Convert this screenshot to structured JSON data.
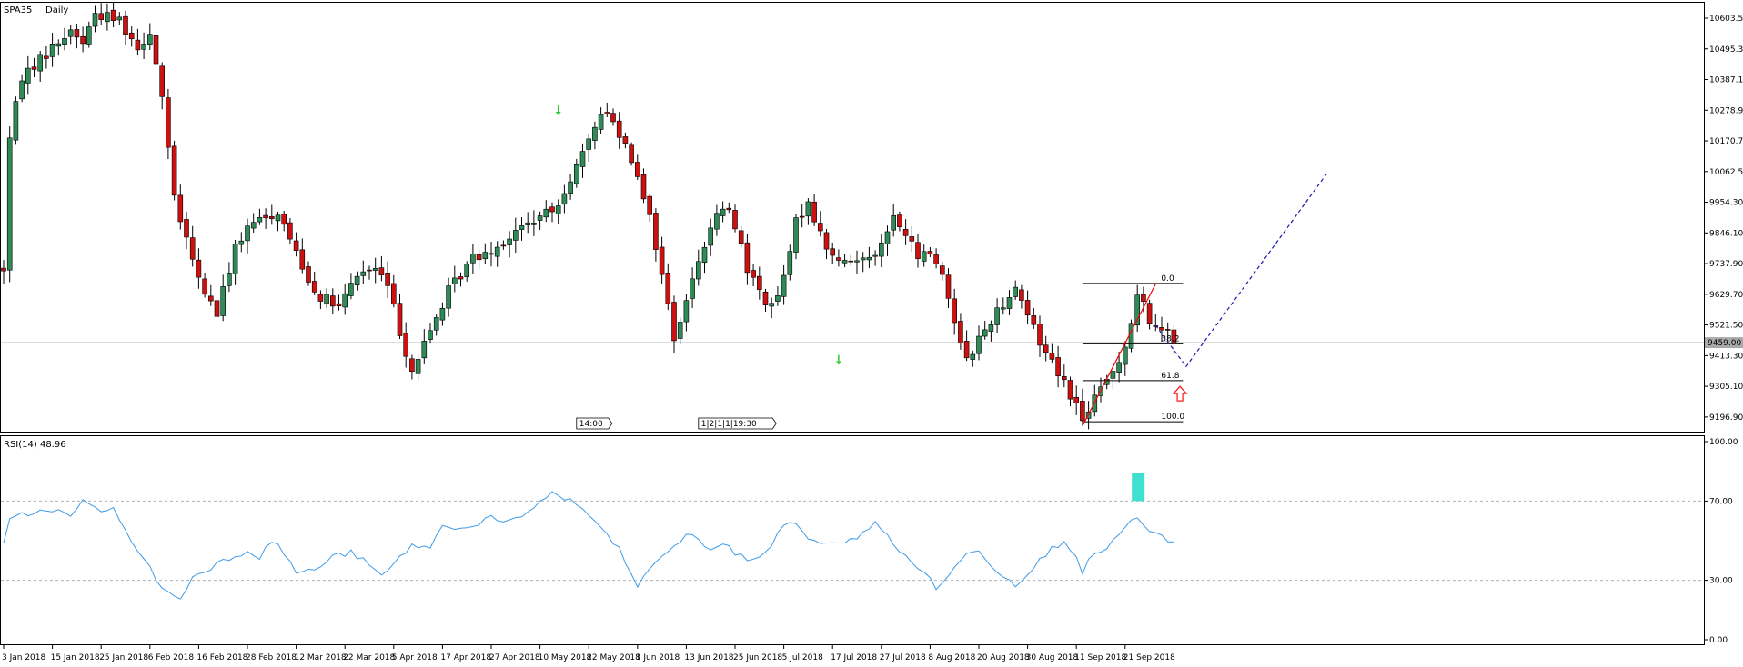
{
  "chart_data": {
    "type": "candlestick",
    "symbol": "SPA35",
    "timeframe": "Daily",
    "colors": {
      "up": "#2e8b57",
      "down": "#cc1111",
      "rsi_line": "#3d9be9",
      "pattern_arrow": "#33cc33",
      "trendline": "#ff0000",
      "projection": "#1a1aaa",
      "rsi_box": "#40e0d0",
      "signal_arrow": "#ff2222"
    },
    "price_axis": {
      "ylim": [
        9142,
        10658
      ],
      "ticks": [
        "10603.50",
        "10495.30",
        "10387.10",
        "10278.90",
        "10170.70",
        "10062.50",
        "9954.30",
        "9846.10",
        "9737.90",
        "9629.70",
        "9521.50",
        "9413.30",
        "9305.10",
        "9196.90"
      ],
      "current_price": 9459,
      "current_price_label": "9459.00"
    },
    "dates": [
      "3 Jan 2018",
      "15 Jan 2018",
      "25 Jan 2018",
      "6 Feb 2018",
      "16 Feb 2018",
      "28 Feb 2018",
      "12 Mar 2018",
      "22 Mar 2018",
      "5 Apr 2018",
      "17 Apr 2018",
      "27 Apr 2018",
      "10 May 2018",
      "22 May 2018",
      "1 Jun 2018",
      "13 Jun 2018",
      "25 Jun 2018",
      "5 Jul 2018",
      "17 Jul 2018",
      "27 Jul 2018",
      "8 Aug 2018",
      "20 Aug 2018",
      "30 Aug 2018",
      "11 Sep 2018",
      "21 Sep 2018"
    ],
    "waypoints": [
      [
        0,
        9720
      ],
      [
        1,
        10180
      ],
      [
        3,
        10400
      ],
      [
        7,
        10480
      ],
      [
        11,
        10560
      ],
      [
        13,
        10520
      ],
      [
        15,
        10620
      ],
      [
        19,
        10600
      ],
      [
        22,
        10500
      ],
      [
        24,
        10560
      ],
      [
        26,
        10330
      ],
      [
        28,
        9960
      ],
      [
        30,
        9820
      ],
      [
        32,
        9680
      ],
      [
        35,
        9560
      ],
      [
        38,
        9800
      ],
      [
        41,
        9880
      ],
      [
        45,
        9920
      ],
      [
        48,
        9780
      ],
      [
        51,
        9640
      ],
      [
        55,
        9580
      ],
      [
        58,
        9700
      ],
      [
        61,
        9720
      ],
      [
        63,
        9660
      ],
      [
        65,
        9500
      ],
      [
        67,
        9360
      ],
      [
        70,
        9500
      ],
      [
        73,
        9640
      ],
      [
        77,
        9760
      ],
      [
        81,
        9800
      ],
      [
        86,
        9880
      ],
      [
        90,
        9920
      ],
      [
        93,
        10040
      ],
      [
        96,
        10160
      ],
      [
        98,
        10280
      ],
      [
        100,
        10240
      ],
      [
        102,
        10160
      ],
      [
        104,
        10060
      ],
      [
        106,
        9900
      ],
      [
        108,
        9700
      ],
      [
        110,
        9480
      ],
      [
        112,
        9600
      ],
      [
        114,
        9760
      ],
      [
        116,
        9860
      ],
      [
        118,
        9940
      ],
      [
        120,
        9880
      ],
      [
        122,
        9720
      ],
      [
        124,
        9640
      ],
      [
        126,
        9580
      ],
      [
        128,
        9680
      ],
      [
        130,
        9880
      ],
      [
        132,
        9960
      ],
      [
        134,
        9840
      ],
      [
        136,
        9760
      ],
      [
        138,
        9740
      ],
      [
        141,
        9760
      ],
      [
        144,
        9800
      ],
      [
        146,
        9900
      ],
      [
        148,
        9840
      ],
      [
        150,
        9760
      ],
      [
        152,
        9780
      ],
      [
        154,
        9700
      ],
      [
        156,
        9540
      ],
      [
        158,
        9400
      ],
      [
        160,
        9470
      ],
      [
        162,
        9540
      ],
      [
        164,
        9600
      ],
      [
        166,
        9660
      ],
      [
        168,
        9560
      ],
      [
        170,
        9460
      ],
      [
        172,
        9400
      ],
      [
        174,
        9320
      ],
      [
        176,
        9240
      ],
      [
        177,
        9180
      ],
      [
        178,
        9230
      ],
      [
        180,
        9290
      ],
      [
        182,
        9360
      ],
      [
        184,
        9450
      ],
      [
        186,
        9620
      ],
      [
        187,
        9590
      ],
      [
        189,
        9500
      ],
      [
        191,
        9520
      ],
      [
        192,
        9470
      ]
    ],
    "fibonacci": {
      "levels": [
        {
          "label": "0.0",
          "price": 9668
        },
        {
          "label": "38.2",
          "price": 9455
        },
        {
          "label": "61.8",
          "price": 9325
        },
        {
          "label": "100.0",
          "price": 9180
        }
      ],
      "bar_start": 177,
      "bar_end": 192
    },
    "trendline": {
      "from": [
        177,
        9165
      ],
      "to": [
        189,
        9666
      ]
    },
    "projection": [
      [
        189,
        9520
      ],
      [
        194,
        9375
      ],
      [
        217,
        10053
      ]
    ],
    "signal_arrow": {
      "bar": 193,
      "price": 9305
    },
    "pattern_arrows": [
      [
        91,
        10280
      ],
      [
        137,
        9400
      ]
    ],
    "time_markers": [
      {
        "bar": 94,
        "text": "14:00"
      },
      {
        "bar": 114,
        "text": "1|2|1|1|19:30"
      }
    ],
    "rsi": {
      "label": "RSI(14) 48.96",
      "ylim": [
        0,
        100
      ],
      "ticks": [
        "100.00",
        "70.00",
        "30.00",
        "0.00"
      ],
      "levels": [
        70,
        30
      ],
      "waypoints": [
        [
          0,
          48
        ],
        [
          1,
          60
        ],
        [
          3,
          63
        ],
        [
          8,
          66
        ],
        [
          11,
          62
        ],
        [
          13,
          70
        ],
        [
          16,
          64
        ],
        [
          18,
          68
        ],
        [
          21,
          48
        ],
        [
          23,
          42
        ],
        [
          25,
          30
        ],
        [
          27,
          24
        ],
        [
          29,
          20
        ],
        [
          31,
          32
        ],
        [
          33,
          35
        ],
        [
          36,
          40
        ],
        [
          40,
          45
        ],
        [
          42,
          42
        ],
        [
          44,
          50
        ],
        [
          46,
          44
        ],
        [
          48,
          34
        ],
        [
          51,
          35
        ],
        [
          54,
          42
        ],
        [
          57,
          44
        ],
        [
          59,
          40
        ],
        [
          62,
          32
        ],
        [
          64,
          38
        ],
        [
          67,
          48
        ],
        [
          70,
          46
        ],
        [
          72,
          58
        ],
        [
          76,
          56
        ],
        [
          80,
          62
        ],
        [
          82,
          58
        ],
        [
          85,
          62
        ],
        [
          88,
          70
        ],
        [
          90,
          74
        ],
        [
          93,
          70
        ],
        [
          95,
          66
        ],
        [
          97,
          60
        ],
        [
          99,
          52
        ],
        [
          101,
          46
        ],
        [
          104,
          26
        ],
        [
          106,
          36
        ],
        [
          108,
          43
        ],
        [
          110,
          46
        ],
        [
          112,
          54
        ],
        [
          114,
          50
        ],
        [
          116,
          46
        ],
        [
          118,
          48
        ],
        [
          120,
          44
        ],
        [
          122,
          40
        ],
        [
          124,
          42
        ],
        [
          126,
          48
        ],
        [
          128,
          58
        ],
        [
          130,
          60
        ],
        [
          132,
          50
        ],
        [
          134,
          48
        ],
        [
          136,
          50
        ],
        [
          138,
          48
        ],
        [
          141,
          54
        ],
        [
          143,
          60
        ],
        [
          145,
          52
        ],
        [
          147,
          44
        ],
        [
          149,
          40
        ],
        [
          151,
          34
        ],
        [
          153,
          26
        ],
        [
          156,
          36
        ],
        [
          158,
          43
        ],
        [
          160,
          46
        ],
        [
          162,
          38
        ],
        [
          164,
          32
        ],
        [
          166,
          28
        ],
        [
          168,
          34
        ],
        [
          170,
          40
        ],
        [
          172,
          46
        ],
        [
          174,
          50
        ],
        [
          176,
          43
        ],
        [
          177,
          34
        ],
        [
          178,
          40
        ],
        [
          180,
          44
        ],
        [
          182,
          50
        ],
        [
          184,
          56
        ],
        [
          186,
          62
        ],
        [
          188,
          54
        ],
        [
          190,
          52
        ],
        [
          192,
          49
        ]
      ],
      "marker_box": {
        "bar": 186,
        "from": 70,
        "to": 84
      }
    }
  }
}
